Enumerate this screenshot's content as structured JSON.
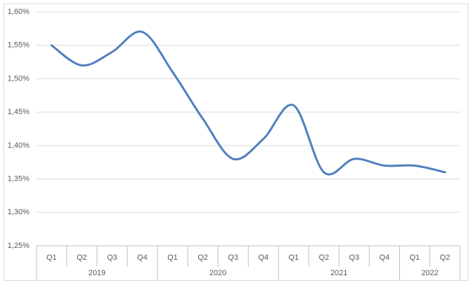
{
  "chart_data": {
    "type": "line",
    "categories": [
      "Q1",
      "Q2",
      "Q3",
      "Q4",
      "Q1",
      "Q2",
      "Q3",
      "Q4",
      "Q1",
      "Q2",
      "Q3",
      "Q4",
      "Q1",
      "Q2"
    ],
    "groups": [
      {
        "name": "2019",
        "count": 4
      },
      {
        "name": "2020",
        "count": 4
      },
      {
        "name": "2021",
        "count": 4
      },
      {
        "name": "2022",
        "count": 2
      }
    ],
    "series": [
      {
        "color": "#4f7fbf",
        "values": [
          1.55,
          1.52,
          1.54,
          1.57,
          1.51,
          1.44,
          1.38,
          1.41,
          1.46,
          1.36,
          1.38,
          1.37,
          1.37,
          1.36
        ]
      }
    ],
    "smooth": true,
    "ylim": [
      1.25,
      1.6
    ],
    "yticks": [
      {
        "value": 1.25,
        "label": "1,25%"
      },
      {
        "value": 1.3,
        "label": "1,30%"
      },
      {
        "value": 1.35,
        "label": "1,35%"
      },
      {
        "value": 1.4,
        "label": "1,40%"
      },
      {
        "value": 1.45,
        "label": "1,45%"
      },
      {
        "value": 1.5,
        "label": "1,50%"
      },
      {
        "value": 1.55,
        "label": "1,55%"
      },
      {
        "value": 1.6,
        "label": "1,60%"
      }
    ],
    "grid": true
  }
}
